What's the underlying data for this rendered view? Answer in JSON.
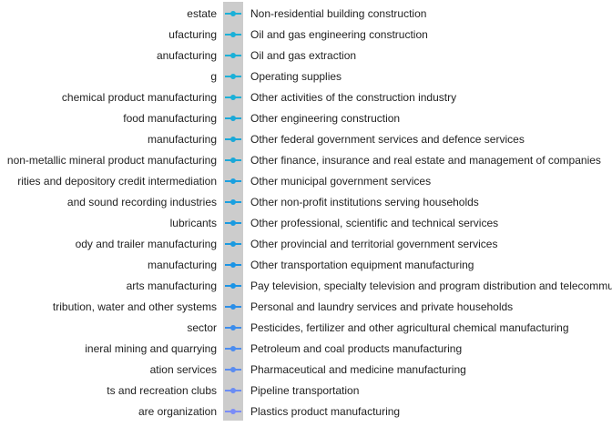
{
  "chart_data": {
    "type": "line",
    "legend_placement": "right",
    "legend_partial_left": [
      "estate",
      "ufacturing",
      "anufacturing",
      "g",
      "chemical product manufacturing",
      "food manufacturing",
      "manufacturing",
      "non-metallic mineral product manufacturing",
      "rities and depository credit intermediation",
      "and sound recording industries",
      " lubricants",
      "ody and trailer manufacturing",
      "manufacturing",
      "arts manufacturing",
      "tribution, water and other systems",
      "sector",
      "ineral mining and quarrying",
      "ation services",
      "ts and recreation clubs",
      "are organization"
    ],
    "series": [
      {
        "name": "Non-residential building construction",
        "color": "#1ab0d8"
      },
      {
        "name": "Oil and gas engineering construction",
        "color": "#1ab0d8"
      },
      {
        "name": "Oil and gas extraction",
        "color": "#1ab0d8"
      },
      {
        "name": "Operating supplies",
        "color": "#1ab0d8"
      },
      {
        "name": "Other activities of the construction industry",
        "color": "#1ab0d8"
      },
      {
        "name": "Other engineering construction",
        "color": "#1aa8d8"
      },
      {
        "name": "Other federal government services and defence services",
        "color": "#1aa8d8"
      },
      {
        "name": "Other finance, insurance and real estate and management of companies",
        "color": "#1aa8d8"
      },
      {
        "name": "Other municipal government services",
        "color": "#1aa0e0"
      },
      {
        "name": "Other non-profit institutions serving households",
        "color": "#1aa0e0"
      },
      {
        "name": "Other professional, scientific and technical services",
        "color": "#1a9ae0"
      },
      {
        "name": "Other provincial and territorial government services",
        "color": "#1a9ae0"
      },
      {
        "name": "Other transportation equipment manufacturing",
        "color": "#1a94e6"
      },
      {
        "name": "Pay television, specialty television and program distribution and telecommunications",
        "color": "#1a94e6"
      },
      {
        "name": "Personal and laundry services and private households",
        "color": "#2a8ee8"
      },
      {
        "name": "Pesticides, fertilizer and other agricultural chemical manufacturing",
        "color": "#3a8cec"
      },
      {
        "name": "Petroleum and coal products manufacturing",
        "color": "#4a8cf0"
      },
      {
        "name": "Pharmaceutical and medicine manufacturing",
        "color": "#5a8cf0"
      },
      {
        "name": "Pipeline transportation",
        "color": "#6a8cf4"
      },
      {
        "name": "Plastics product manufacturing",
        "color": "#7a8cf8"
      }
    ]
  }
}
